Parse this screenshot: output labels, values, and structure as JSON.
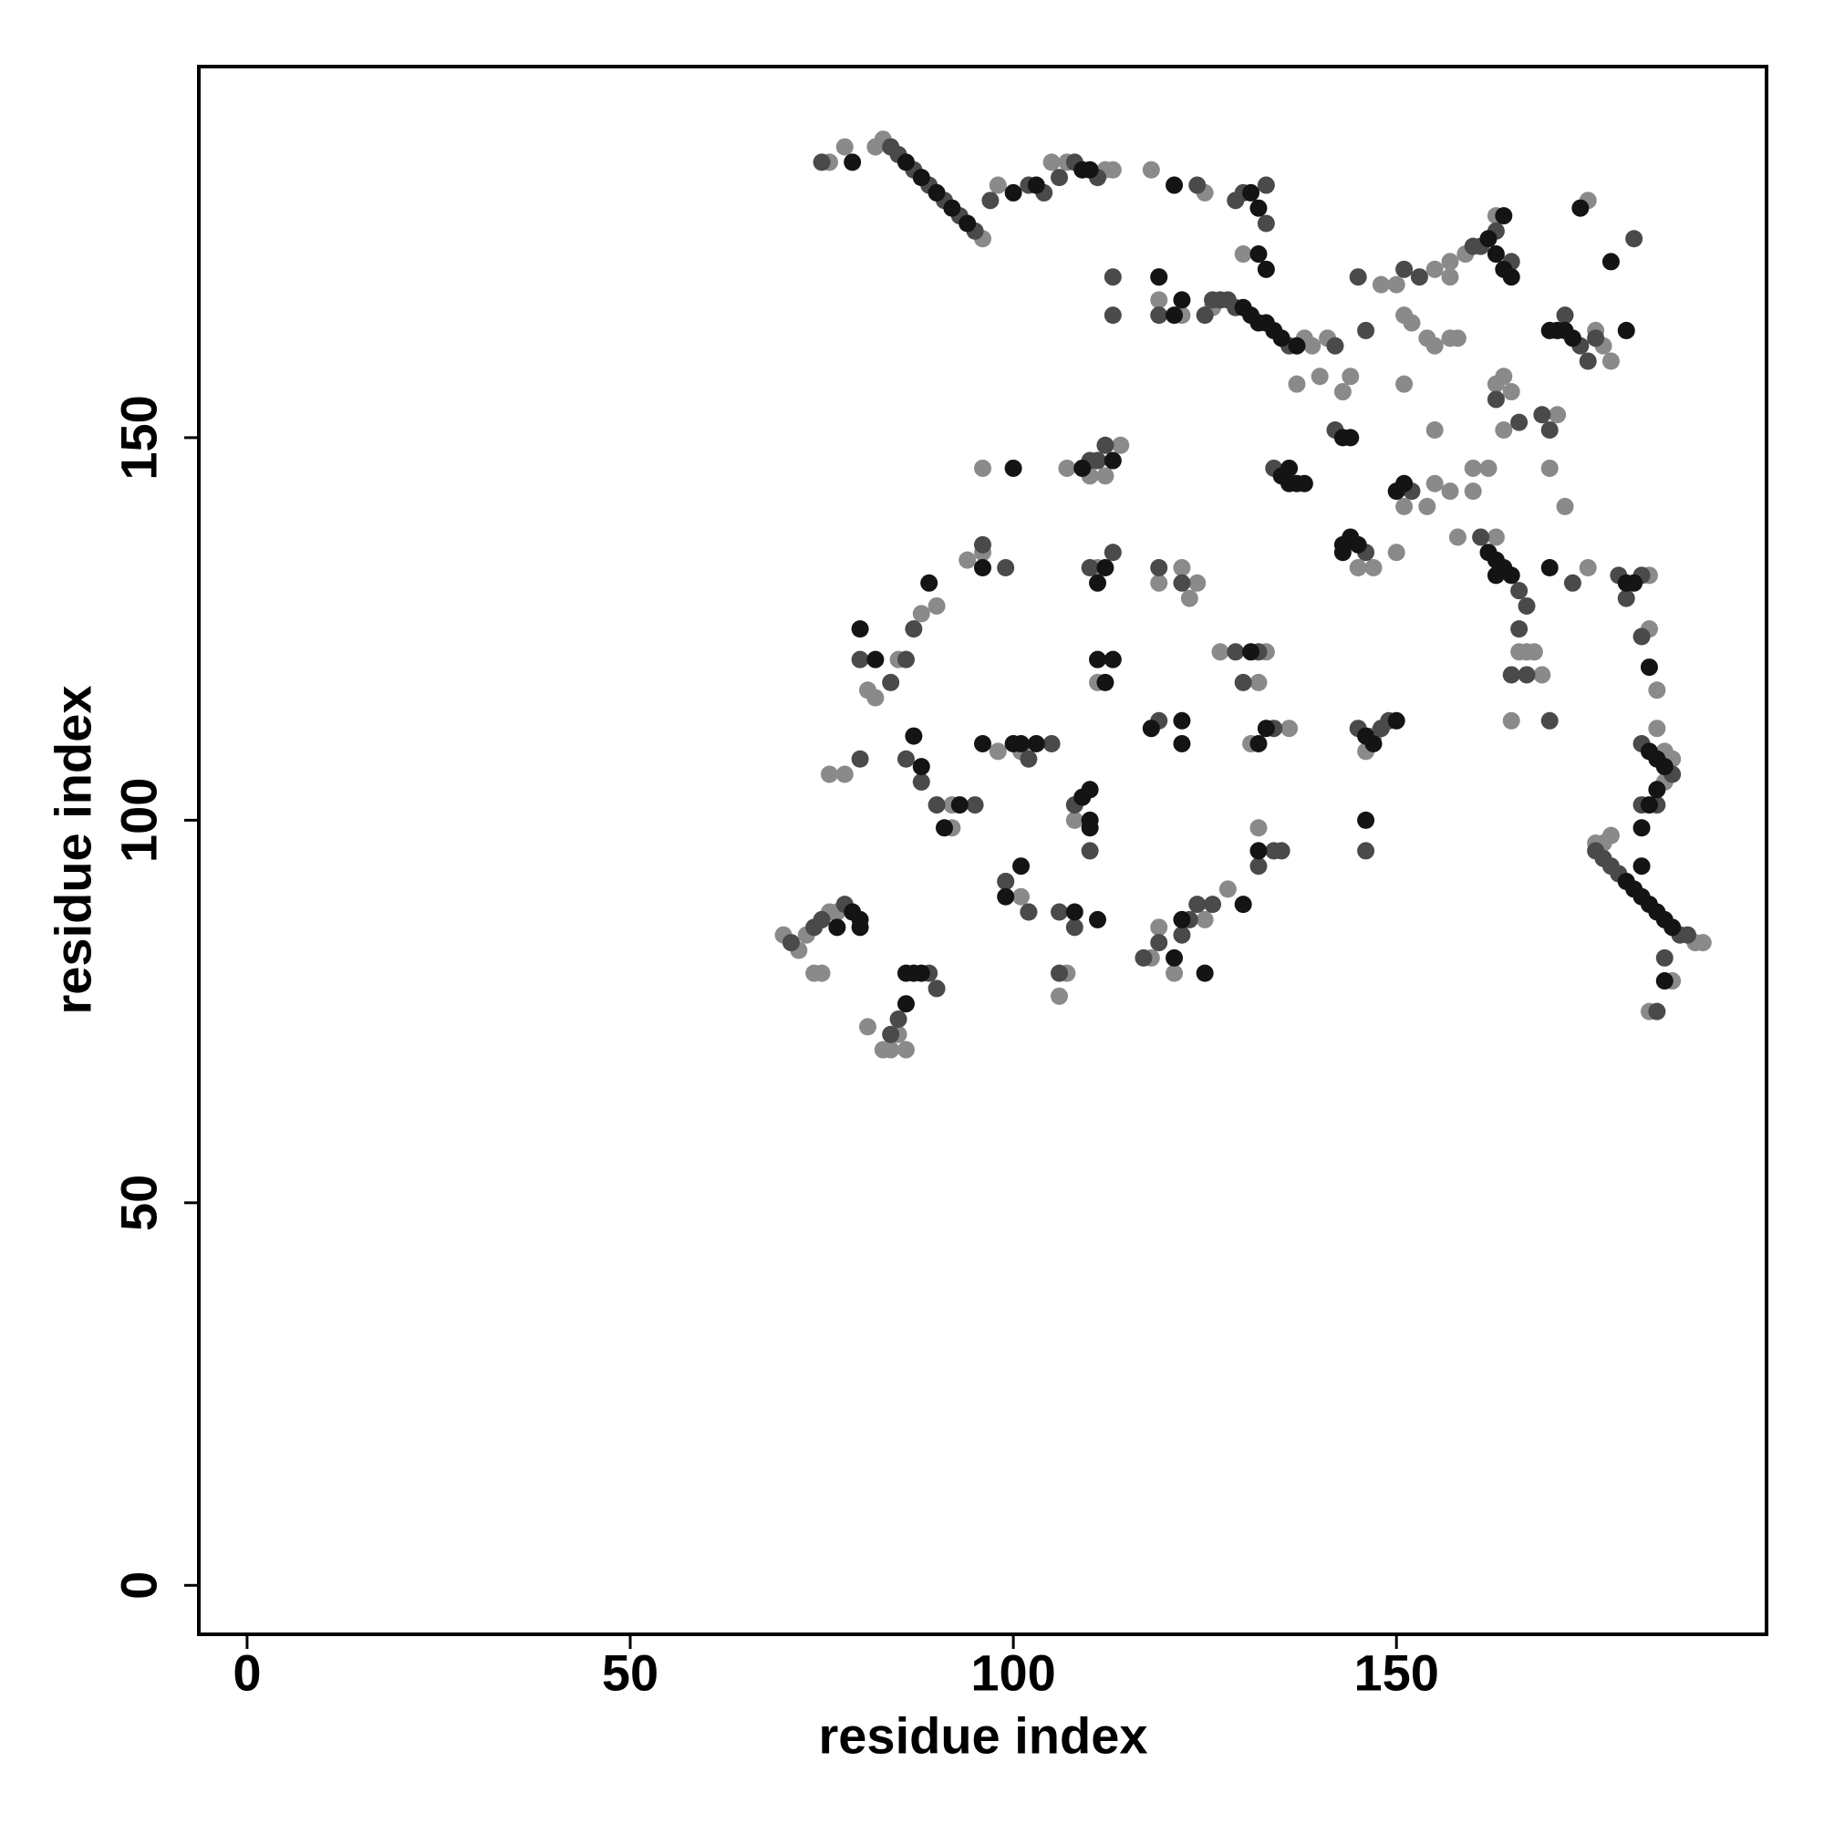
{
  "chart_data": {
    "type": "scatter",
    "x_label": "residue index",
    "y_label": "residue index",
    "xlim": [
      -6.3,
      198.3
    ],
    "ylim": [
      -6.4,
      198.5
    ],
    "xticks": [
      0,
      50,
      100,
      150
    ],
    "yticks": [
      0,
      50,
      100,
      150
    ],
    "series": [
      {
        "color": "#8a8a8a",
        "x": [
          76,
          78,
          82,
          83,
          96,
          98,
          105,
          107,
          112,
          113,
          118,
          125,
          126,
          138,
          139,
          141,
          140,
          143,
          144,
          151,
          137,
          145,
          147,
          155,
          157,
          159,
          163,
          175,
          176,
          177,
          178,
          168,
          167,
          166,
          169,
          165,
          170,
          172,
          171,
          183,
          184,
          183,
          185,
          186,
          184,
          185,
          176,
          177,
          178,
          189,
          190,
          186,
          183,
          70,
          72,
          73,
          76,
          77,
          74,
          75,
          83,
          84,
          86,
          81,
          85,
          81,
          82,
          85,
          88,
          90,
          76,
          78,
          92,
          92,
          98,
          101,
          108,
          99,
          101,
          106,
          107,
          102,
          118,
          119,
          121,
          125,
          128,
          132,
          127,
          133,
          132,
          131,
          136,
          146,
          147,
          118,
          119,
          122,
          123,
          124,
          111,
          111,
          107,
          110,
          112,
          114,
          96,
          94,
          96,
          119,
          119,
          122,
          130,
          148,
          150,
          151,
          152,
          154,
          155,
          157,
          158,
          157,
          155,
          157,
          155,
          160,
          162,
          160,
          158,
          163,
          154,
          151,
          150,
          164,
          165,
          164,
          163,
          175
        ],
        "values": [
          186,
          188,
          188,
          189,
          176,
          183,
          186,
          186,
          185,
          185,
          185,
          182,
          167,
          163,
          162,
          163,
          158,
          156,
          158,
          157,
          157,
          133,
          133,
          172,
          173,
          174,
          179,
          181,
          164,
          162,
          160,
          122,
          122,
          122,
          119,
          113,
          146,
          141,
          153,
          132,
          117,
          125,
          109,
          108,
          112,
          105,
          97,
          97,
          98,
          84,
          84,
          79,
          75,
          85,
          83,
          85,
          88,
          88,
          80,
          80,
          70,
          70,
          70,
          73,
          72,
          117,
          116,
          121,
          127,
          128,
          106,
          106,
          99,
          102,
          109,
          109,
          100,
          92,
          90,
          77,
          80,
          88,
          82,
          86,
          80,
          87,
          91,
          99,
          122,
          122,
          118,
          110,
          112,
          109,
          111,
          112,
          131,
          133,
          129,
          131,
          133,
          118,
          146,
          145,
          145,
          149,
          146,
          134,
          135,
          171,
          168,
          166,
          174,
          170,
          170,
          166,
          165,
          163,
          162,
          163,
          163,
          171,
          151,
          143,
          144,
          146,
          146,
          143,
          137,
          137,
          141,
          141,
          135,
          158,
          156,
          151,
          157,
          133
        ]
      },
      {
        "color": "#4a4a4a",
        "x": [
          84,
          85,
          87,
          89,
          91,
          93,
          95,
          75,
          97,
          102,
          104,
          106,
          108,
          111,
          124,
          129,
          130,
          133,
          127,
          128,
          129,
          136,
          133,
          134,
          146,
          142,
          152,
          160,
          161,
          163,
          165,
          174,
          175,
          176,
          181,
          172,
          161,
          166,
          167,
          173,
          179,
          182,
          180,
          182,
          182,
          186,
          182,
          184,
          176,
          177,
          178,
          179,
          187,
          188,
          185,
          184,
          74,
          75,
          78,
          71,
          89,
          90,
          85,
          84,
          80,
          84,
          86,
          87,
          86,
          88,
          90,
          95,
          80,
          102,
          105,
          108,
          110,
          99,
          102,
          106,
          108,
          106,
          117,
          119,
          122,
          123,
          124,
          126,
          132,
          134,
          135,
          129,
          132,
          130,
          134,
          145,
          148,
          149,
          146,
          119,
          119,
          122,
          110,
          113,
          110,
          111,
          112,
          96,
          99,
          113,
          113,
          119,
          126,
          125,
          145,
          151,
          153,
          146,
          142,
          163,
          166,
          169,
          170,
          166,
          167,
          170,
          165
        ],
        "values": [
          188,
          187,
          185,
          183,
          181,
          179,
          177,
          186,
          181,
          183,
          182,
          184,
          186,
          184,
          183,
          181,
          182,
          183,
          168,
          168,
          167,
          162,
          178,
          146,
          135,
          151,
          143,
          175,
          175,
          177,
          173,
          162,
          160,
          163,
          176,
          166,
          137,
          130,
          128,
          131,
          132,
          132,
          129,
          124,
          110,
          106,
          102,
          102,
          96,
          95,
          94,
          93,
          85,
          85,
          82,
          75,
          86,
          87,
          89,
          84,
          80,
          78,
          74,
          72,
          121,
          118,
          121,
          125,
          108,
          105,
          102,
          102,
          108,
          108,
          110,
          102,
          96,
          92,
          88,
          88,
          86,
          80,
          82,
          84,
          85,
          87,
          89,
          89,
          94,
          96,
          96,
          122,
          122,
          118,
          112,
          112,
          112,
          113,
          96,
          113,
          133,
          131,
          133,
          135,
          147,
          147,
          149,
          136,
          133,
          171,
          166,
          166,
          168,
          166,
          171,
          172,
          171,
          164,
          162,
          155,
          152,
          153,
          151,
          125,
          119,
          113,
          119
        ]
      },
      {
        "color": "#141414",
        "x": [
          86,
          88,
          90,
          92,
          94,
          79,
          100,
          103,
          109,
          110,
          121,
          131,
          132,
          130,
          131,
          132,
          133,
          134,
          135,
          137,
          135,
          136,
          137,
          138,
          136,
          143,
          144,
          145,
          143,
          143,
          144,
          151,
          150,
          163,
          164,
          165,
          164,
          162,
          171,
          172,
          173,
          170,
          180,
          174,
          178,
          162,
          163,
          164,
          165,
          163,
          170,
          180,
          181,
          183,
          183,
          184,
          185,
          184,
          183,
          182,
          180,
          181,
          182,
          183,
          184,
          185,
          186,
          182,
          185,
          79,
          80,
          80,
          77,
          86,
          87,
          88,
          86,
          82,
          80,
          89,
          87,
          88,
          93,
          91,
          100,
          101,
          103,
          96,
          110,
          110,
          110,
          109,
          101,
          99,
          108,
          111,
          121,
          122,
          125,
          130,
          132,
          133,
          132,
          131,
          146,
          147,
          150,
          146,
          118,
          122,
          122,
          111,
          112,
          113,
          112,
          111,
          113,
          109,
          100,
          96,
          119,
          122,
          132,
          133,
          121
        ],
        "values": [
          186,
          184,
          182,
          180,
          178,
          186,
          182,
          183,
          185,
          185,
          183,
          182,
          180,
          167,
          166,
          165,
          165,
          164,
          163,
          162,
          145,
          144,
          144,
          144,
          146,
          136,
          137,
          136,
          135,
          150,
          150,
          144,
          143,
          174,
          172,
          171,
          179,
          176,
          164,
          164,
          163,
          164,
          164,
          180,
          173,
          135,
          134,
          133,
          132,
          132,
          133,
          131,
          131,
          120,
          109,
          108,
          107,
          104,
          102,
          99,
          92,
          91,
          90,
          89,
          88,
          87,
          86,
          94,
          79,
          88,
          87,
          86,
          86,
          80,
          80,
          80,
          76,
          121,
          125,
          131,
          111,
          107,
          102,
          99,
          110,
          110,
          110,
          110,
          104,
          100,
          99,
          103,
          94,
          90,
          88,
          87,
          82,
          87,
          80,
          89,
          96,
          112,
          110,
          122,
          111,
          110,
          113,
          100,
          112,
          113,
          110,
          121,
          118,
          121,
          133,
          131,
          147,
          146,
          146,
          133,
          171,
          168,
          174,
          172,
          166
        ]
      }
    ]
  }
}
